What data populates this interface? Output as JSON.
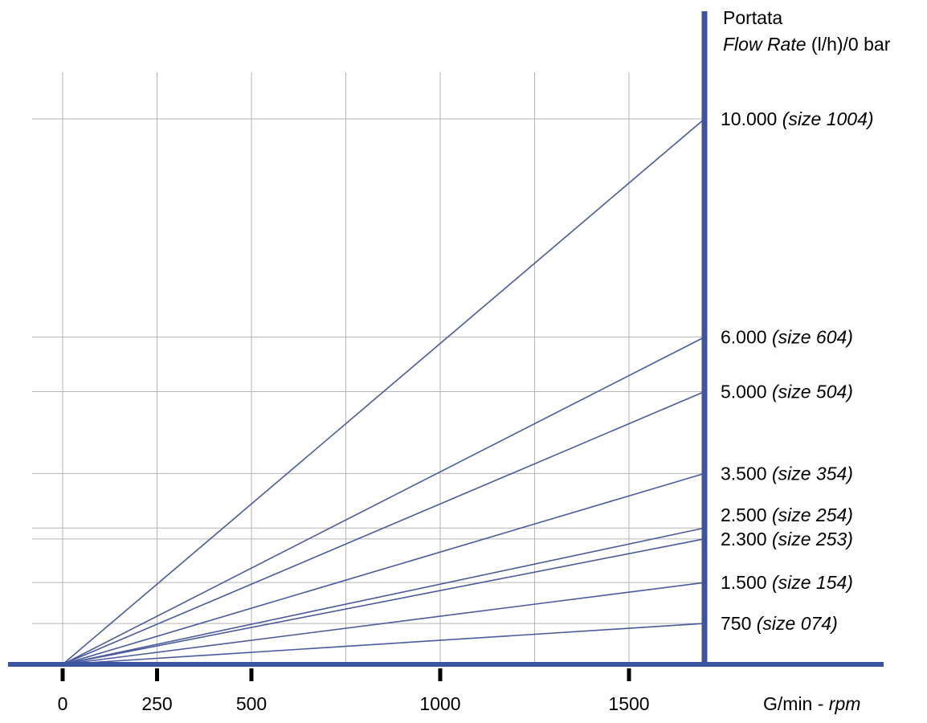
{
  "chart_data": {
    "type": "line",
    "title": "",
    "ylabel_line1": "Portata",
    "ylabel_italic": "Flow Rate",
    "ylabel_rest": " (l/h)/0 bar",
    "xlabel_main": "G/min - ",
    "xlabel_italic": "rpm",
    "x_ticks": [
      {
        "value": 0,
        "label": "0"
      },
      {
        "value": 250,
        "label": "250"
      },
      {
        "value": 500,
        "label": "500"
      },
      {
        "value": 1000,
        "label": "1000"
      },
      {
        "value": 1500,
        "label": "1500"
      }
    ],
    "xlim": [
      0,
      1700
    ],
    "ylim": [
      0,
      10000
    ],
    "series": [
      {
        "name": "size 1004",
        "x": [
          0,
          1700
        ],
        "y": [
          0,
          10000
        ],
        "value_label": "10.000",
        "size_label": "(size 1004)"
      },
      {
        "name": "size 604",
        "x": [
          0,
          1700
        ],
        "y": [
          0,
          6000
        ],
        "value_label": "6.000",
        "size_label": "(size 604)"
      },
      {
        "name": "size 504",
        "x": [
          0,
          1700
        ],
        "y": [
          0,
          5000
        ],
        "value_label": "5.000",
        "size_label": "(size 504)"
      },
      {
        "name": "size 354",
        "x": [
          0,
          1700
        ],
        "y": [
          0,
          3500
        ],
        "value_label": "3.500",
        "size_label": "(size 354)"
      },
      {
        "name": "size 254",
        "x": [
          0,
          1700
        ],
        "y": [
          0,
          2500
        ],
        "value_label": "2.500",
        "size_label": "(size 254)"
      },
      {
        "name": "size 253",
        "x": [
          0,
          1700
        ],
        "y": [
          0,
          2300
        ],
        "value_label": "2.300",
        "size_label": "(size 253)"
      },
      {
        "name": "size 154",
        "x": [
          0,
          1700
        ],
        "y": [
          0,
          1500
        ],
        "value_label": "1.500",
        "size_label": "(size 154)"
      },
      {
        "name": "size 074",
        "x": [
          0,
          1700
        ],
        "y": [
          0,
          750
        ],
        "value_label": "750",
        "size_label": "(size 074)"
      }
    ],
    "grid": true,
    "colors": {
      "line": "#4a5a9c",
      "axis": "#3b55a0",
      "grid": "#b5b5b5"
    }
  }
}
